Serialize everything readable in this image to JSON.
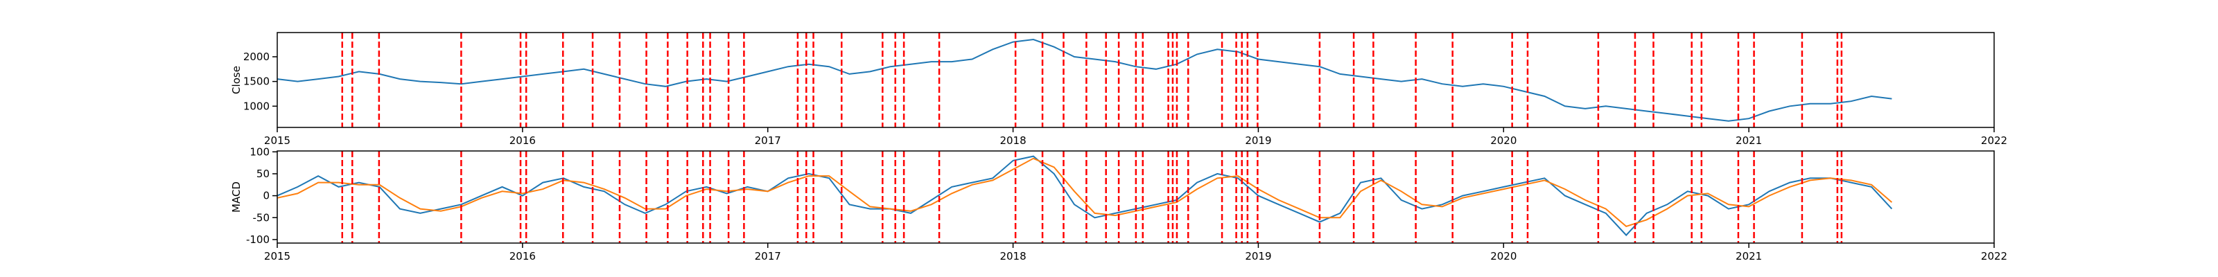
{
  "chart_data": [
    {
      "type": "line",
      "ylabel": "Close",
      "x": [
        2015.0,
        2015.083,
        2015.167,
        2015.25,
        2015.333,
        2015.417,
        2015.5,
        2015.583,
        2015.667,
        2015.75,
        2015.833,
        2015.917,
        2016.0,
        2016.083,
        2016.167,
        2016.25,
        2016.333,
        2016.417,
        2016.5,
        2016.583,
        2016.667,
        2016.75,
        2016.833,
        2016.917,
        2017.0,
        2017.083,
        2017.167,
        2017.25,
        2017.333,
        2017.417,
        2017.5,
        2017.583,
        2017.667,
        2017.75,
        2017.833,
        2017.917,
        2018.0,
        2018.083,
        2018.167,
        2018.25,
        2018.333,
        2018.417,
        2018.5,
        2018.583,
        2018.667,
        2018.75,
        2018.833,
        2018.917,
        2019.0,
        2019.083,
        2019.167,
        2019.25,
        2019.333,
        2019.417,
        2019.5,
        2019.583,
        2019.667,
        2019.75,
        2019.833,
        2019.917,
        2020.0,
        2020.083,
        2020.167,
        2020.25,
        2020.333,
        2020.417,
        2020.5,
        2020.583,
        2020.667,
        2020.75,
        2020.833,
        2020.917,
        2021.0,
        2021.083,
        2021.167,
        2021.25,
        2021.333,
        2021.417,
        2021.5,
        2021.583
      ],
      "series": [
        {
          "color": "#1f77b4",
          "values": [
            1550,
            1500,
            1550,
            1600,
            1700,
            1650,
            1550,
            1500,
            1480,
            1450,
            1500,
            1550,
            1600,
            1650,
            1700,
            1750,
            1650,
            1550,
            1450,
            1400,
            1500,
            1550,
            1500,
            1600,
            1700,
            1800,
            1850,
            1800,
            1650,
            1700,
            1800,
            1850,
            1900,
            1900,
            1950,
            2150,
            2300,
            2350,
            2200,
            2000,
            1950,
            1900,
            1800,
            1750,
            1850,
            2050,
            2150,
            2100,
            1950,
            1900,
            1850,
            1800,
            1650,
            1600,
            1550,
            1500,
            1550,
            1450,
            1400,
            1450,
            1400,
            1300,
            1200,
            1000,
            950,
            1000,
            950,
            900,
            850,
            800,
            750,
            700,
            750,
            900,
            1000,
            1050,
            1050,
            1100,
            1200,
            1150
          ]
        }
      ],
      "xlim": [
        2015,
        2022
      ],
      "xticks": [
        2015,
        2016,
        2017,
        2018,
        2019,
        2020,
        2021,
        2022
      ],
      "ylim": [
        570,
        2490
      ],
      "yticks": [
        1000,
        1500,
        2000
      ],
      "vlines": {
        "color": "red",
        "x": [
          2015.265,
          2015.306,
          2015.415,
          2015.75,
          2015.992,
          2016.015,
          2016.165,
          2016.286,
          2016.396,
          2016.505,
          2016.592,
          2016.672,
          2016.736,
          2016.765,
          2016.84,
          2016.903,
          2017.122,
          2017.157,
          2017.186,
          2017.301,
          2017.468,
          2017.52,
          2017.555,
          2017.699,
          2018.01,
          2018.12,
          2018.206,
          2018.299,
          2018.379,
          2018.431,
          2018.501,
          2018.529,
          2018.633,
          2018.651,
          2018.668,
          2018.714,
          2018.852,
          2018.91,
          2018.933,
          2018.956,
          2018.997,
          2019.25,
          2019.389,
          2019.469,
          2019.642,
          2019.792,
          2020.035,
          2020.098,
          2020.386,
          2020.536,
          2020.611,
          2020.767,
          2020.807,
          2020.957,
          2021.021,
          2021.217,
          2021.361,
          2021.378
        ]
      }
    },
    {
      "type": "line",
      "ylabel": "MACD",
      "x": [
        2015.0,
        2015.083,
        2015.167,
        2015.25,
        2015.333,
        2015.417,
        2015.5,
        2015.583,
        2015.667,
        2015.75,
        2015.833,
        2015.917,
        2016.0,
        2016.083,
        2016.167,
        2016.25,
        2016.333,
        2016.417,
        2016.5,
        2016.583,
        2016.667,
        2016.75,
        2016.833,
        2016.917,
        2017.0,
        2017.083,
        2017.167,
        2017.25,
        2017.333,
        2017.417,
        2017.5,
        2017.583,
        2017.667,
        2017.75,
        2017.833,
        2017.917,
        2018.0,
        2018.083,
        2018.167,
        2018.25,
        2018.333,
        2018.417,
        2018.5,
        2018.583,
        2018.667,
        2018.75,
        2018.833,
        2018.917,
        2019.0,
        2019.083,
        2019.167,
        2019.25,
        2019.333,
        2019.417,
        2019.5,
        2019.583,
        2019.667,
        2019.75,
        2019.833,
        2019.917,
        2020.0,
        2020.083,
        2020.167,
        2020.25,
        2020.333,
        2020.417,
        2020.5,
        2020.583,
        2020.667,
        2020.75,
        2020.833,
        2020.917,
        2021.0,
        2021.083,
        2021.167,
        2021.25,
        2021.333,
        2021.417,
        2021.5,
        2021.583
      ],
      "series": [
        {
          "color": "#1f77b4",
          "values": [
            0,
            20,
            45,
            20,
            30,
            20,
            -30,
            -40,
            -30,
            -20,
            0,
            20,
            0,
            30,
            40,
            20,
            10,
            -20,
            -40,
            -20,
            10,
            20,
            5,
            20,
            10,
            40,
            50,
            40,
            -20,
            -30,
            -30,
            -40,
            -10,
            20,
            30,
            40,
            80,
            90,
            50,
            -20,
            -50,
            -40,
            -30,
            -20,
            -10,
            30,
            50,
            40,
            0,
            -20,
            -40,
            -60,
            -40,
            30,
            40,
            -10,
            -30,
            -20,
            0,
            10,
            20,
            30,
            40,
            0,
            -20,
            -40,
            -90,
            -40,
            -20,
            10,
            0,
            -30,
            -20,
            10,
            30,
            40,
            40,
            30,
            20,
            -30
          ]
        },
        {
          "color": "#ff7f0e",
          "values": [
            -5,
            5,
            30,
            30,
            25,
            25,
            -5,
            -30,
            -35,
            -25,
            -5,
            10,
            5,
            15,
            35,
            30,
            15,
            -5,
            -30,
            -30,
            0,
            15,
            10,
            15,
            10,
            30,
            45,
            45,
            10,
            -25,
            -30,
            -35,
            -20,
            5,
            25,
            35,
            60,
            85,
            65,
            10,
            -40,
            -45,
            -35,
            -25,
            -15,
            15,
            40,
            45,
            15,
            -10,
            -30,
            -50,
            -50,
            10,
            35,
            10,
            -20,
            -25,
            -5,
            5,
            15,
            25,
            35,
            15,
            -10,
            -30,
            -70,
            -55,
            -30,
            0,
            5,
            -20,
            -25,
            0,
            20,
            35,
            40,
            35,
            25,
            -15
          ]
        }
      ],
      "xlim": [
        2015,
        2022
      ],
      "xticks": [
        2015,
        2016,
        2017,
        2018,
        2019,
        2020,
        2021,
        2022
      ],
      "ylim": [
        -108,
        102
      ],
      "yticks": [
        -100,
        -50,
        0,
        50,
        100
      ],
      "vlines": {
        "color": "red",
        "x": [
          2015.265,
          2015.306,
          2015.415,
          2015.75,
          2015.992,
          2016.015,
          2016.165,
          2016.286,
          2016.396,
          2016.505,
          2016.592,
          2016.672,
          2016.736,
          2016.765,
          2016.84,
          2016.903,
          2017.122,
          2017.157,
          2017.186,
          2017.301,
          2017.468,
          2017.52,
          2017.555,
          2017.699,
          2018.01,
          2018.12,
          2018.206,
          2018.299,
          2018.379,
          2018.431,
          2018.501,
          2018.529,
          2018.633,
          2018.651,
          2018.668,
          2018.714,
          2018.852,
          2018.91,
          2018.933,
          2018.956,
          2018.997,
          2019.25,
          2019.389,
          2019.469,
          2019.642,
          2019.792,
          2020.035,
          2020.098,
          2020.386,
          2020.536,
          2020.611,
          2020.767,
          2020.807,
          2020.957,
          2021.021,
          2021.217,
          2021.361,
          2021.378
        ]
      }
    }
  ]
}
